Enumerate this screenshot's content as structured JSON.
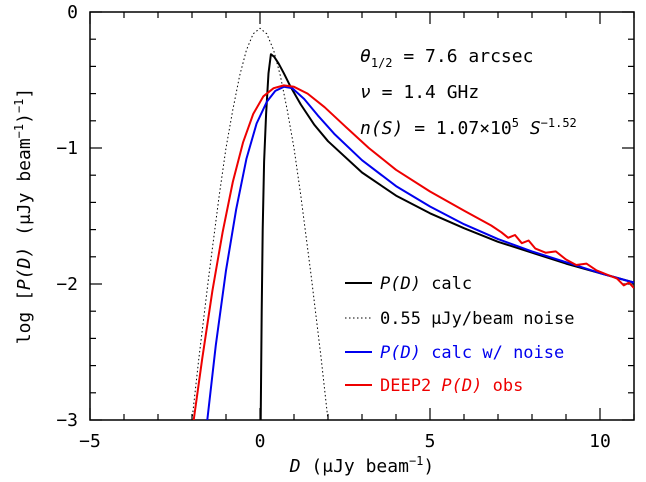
{
  "chart_data": {
    "type": "line",
    "xlabel": {
      "var": "D",
      "rest": " (μJy beam",
      "sup": "−1",
      "close": ")"
    },
    "ylabel": {
      "pre": "log [",
      "var": "P(D)",
      "mid": " (μJy beam",
      "sup": "−1",
      "close": ")",
      "sup2": "−1",
      "end": "]"
    },
    "xlim": [
      -5,
      11
    ],
    "ylim": [
      -3,
      0
    ],
    "x_ticks": [
      -5,
      0,
      5,
      10
    ],
    "y_ticks": [
      0,
      -1,
      -2,
      -3
    ],
    "x_tick_labels": [
      "−5",
      "0",
      "5",
      "10"
    ],
    "y_tick_labels": [
      "0",
      "−1",
      "−2",
      "−3"
    ],
    "grid": false,
    "legend_placement": "bottom-right",
    "annotations": [
      {
        "var": "θ",
        "sub": "1/2",
        "text": " = 7.6 arcsec"
      },
      {
        "var": "ν",
        "text": " = 1.4 GHz"
      },
      {
        "var": "n(S)",
        "text": " = 1.07×10",
        "sup": "5",
        "text2": " ",
        "var2": "S",
        "sup2": "−1.52"
      }
    ],
    "series": [
      {
        "legend_var": "P(D)",
        "legend_text": " calc",
        "color": "#000000",
        "dash": "solid",
        "points": [
          [
            0.02,
            -3.0
          ],
          [
            0.05,
            -2.2
          ],
          [
            0.08,
            -1.6
          ],
          [
            0.12,
            -1.1
          ],
          [
            0.18,
            -0.75
          ],
          [
            0.25,
            -0.45
          ],
          [
            0.32,
            -0.31
          ],
          [
            0.42,
            -0.33
          ],
          [
            0.55,
            -0.38
          ],
          [
            0.7,
            -0.45
          ],
          [
            0.9,
            -0.55
          ],
          [
            1.2,
            -0.68
          ],
          [
            1.6,
            -0.83
          ],
          [
            2.0,
            -0.95
          ],
          [
            3.0,
            -1.18
          ],
          [
            4.0,
            -1.35
          ],
          [
            5.0,
            -1.48
          ],
          [
            6.0,
            -1.59
          ],
          [
            7.0,
            -1.69
          ],
          [
            8.0,
            -1.77
          ],
          [
            9.0,
            -1.85
          ],
          [
            10.0,
            -1.92
          ],
          [
            11.0,
            -1.99
          ]
        ]
      },
      {
        "legend_text": "0.55 μJy/beam noise",
        "color": "#000000",
        "dash": "dotted",
        "points": [
          [
            -2.0,
            -3.0
          ],
          [
            -1.8,
            -2.55
          ],
          [
            -1.5,
            -1.93
          ],
          [
            -1.2,
            -1.35
          ],
          [
            -1.0,
            -1.0
          ],
          [
            -0.8,
            -0.72
          ],
          [
            -0.6,
            -0.47
          ],
          [
            -0.4,
            -0.28
          ],
          [
            -0.2,
            -0.16
          ],
          [
            0.0,
            -0.12
          ],
          [
            0.2,
            -0.16
          ],
          [
            0.4,
            -0.28
          ],
          [
            0.6,
            -0.47
          ],
          [
            0.8,
            -0.72
          ],
          [
            1.0,
            -1.0
          ],
          [
            1.2,
            -1.35
          ],
          [
            1.5,
            -1.93
          ],
          [
            1.8,
            -2.55
          ],
          [
            2.0,
            -3.0
          ]
        ]
      },
      {
        "legend_var": "P(D)",
        "legend_text": " calc w/ noise",
        "color": "#0000ee",
        "dash": "solid",
        "points": [
          [
            -1.55,
            -3.0
          ],
          [
            -1.3,
            -2.45
          ],
          [
            -1.0,
            -1.9
          ],
          [
            -0.7,
            -1.45
          ],
          [
            -0.4,
            -1.08
          ],
          [
            -0.1,
            -0.82
          ],
          [
            0.2,
            -0.66
          ],
          [
            0.45,
            -0.58
          ],
          [
            0.7,
            -0.55
          ],
          [
            0.95,
            -0.56
          ],
          [
            1.3,
            -0.64
          ],
          [
            1.7,
            -0.76
          ],
          [
            2.2,
            -0.9
          ],
          [
            3.0,
            -1.09
          ],
          [
            4.0,
            -1.28
          ],
          [
            5.0,
            -1.43
          ],
          [
            6.0,
            -1.56
          ],
          [
            7.0,
            -1.67
          ],
          [
            8.0,
            -1.76
          ],
          [
            9.0,
            -1.84
          ],
          [
            10.0,
            -1.92
          ],
          [
            11.0,
            -1.99
          ]
        ]
      },
      {
        "legend_pre": "DEEP2 ",
        "legend_var": "P(D)",
        "legend_text": " obs",
        "color": "#ee0000",
        "dash": "solid",
        "points": [
          [
            -1.95,
            -3.0
          ],
          [
            -1.7,
            -2.55
          ],
          [
            -1.4,
            -2.05
          ],
          [
            -1.1,
            -1.62
          ],
          [
            -0.8,
            -1.25
          ],
          [
            -0.5,
            -0.96
          ],
          [
            -0.2,
            -0.75
          ],
          [
            0.1,
            -0.62
          ],
          [
            0.4,
            -0.56
          ],
          [
            0.7,
            -0.54
          ],
          [
            1.0,
            -0.55
          ],
          [
            1.4,
            -0.6
          ],
          [
            1.9,
            -0.7
          ],
          [
            2.5,
            -0.84
          ],
          [
            3.2,
            -1.0
          ],
          [
            4.0,
            -1.16
          ],
          [
            5.0,
            -1.32
          ],
          [
            6.0,
            -1.46
          ],
          [
            6.8,
            -1.57
          ],
          [
            7.1,
            -1.62
          ],
          [
            7.3,
            -1.66
          ],
          [
            7.5,
            -1.64
          ],
          [
            7.7,
            -1.7
          ],
          [
            7.9,
            -1.68
          ],
          [
            8.1,
            -1.74
          ],
          [
            8.4,
            -1.77
          ],
          [
            8.7,
            -1.76
          ],
          [
            9.0,
            -1.82
          ],
          [
            9.3,
            -1.86
          ],
          [
            9.6,
            -1.85
          ],
          [
            9.9,
            -1.9
          ],
          [
            10.2,
            -1.93
          ],
          [
            10.5,
            -1.96
          ],
          [
            10.7,
            -2.01
          ],
          [
            10.85,
            -1.99
          ],
          [
            11.0,
            -2.03
          ]
        ]
      }
    ]
  }
}
